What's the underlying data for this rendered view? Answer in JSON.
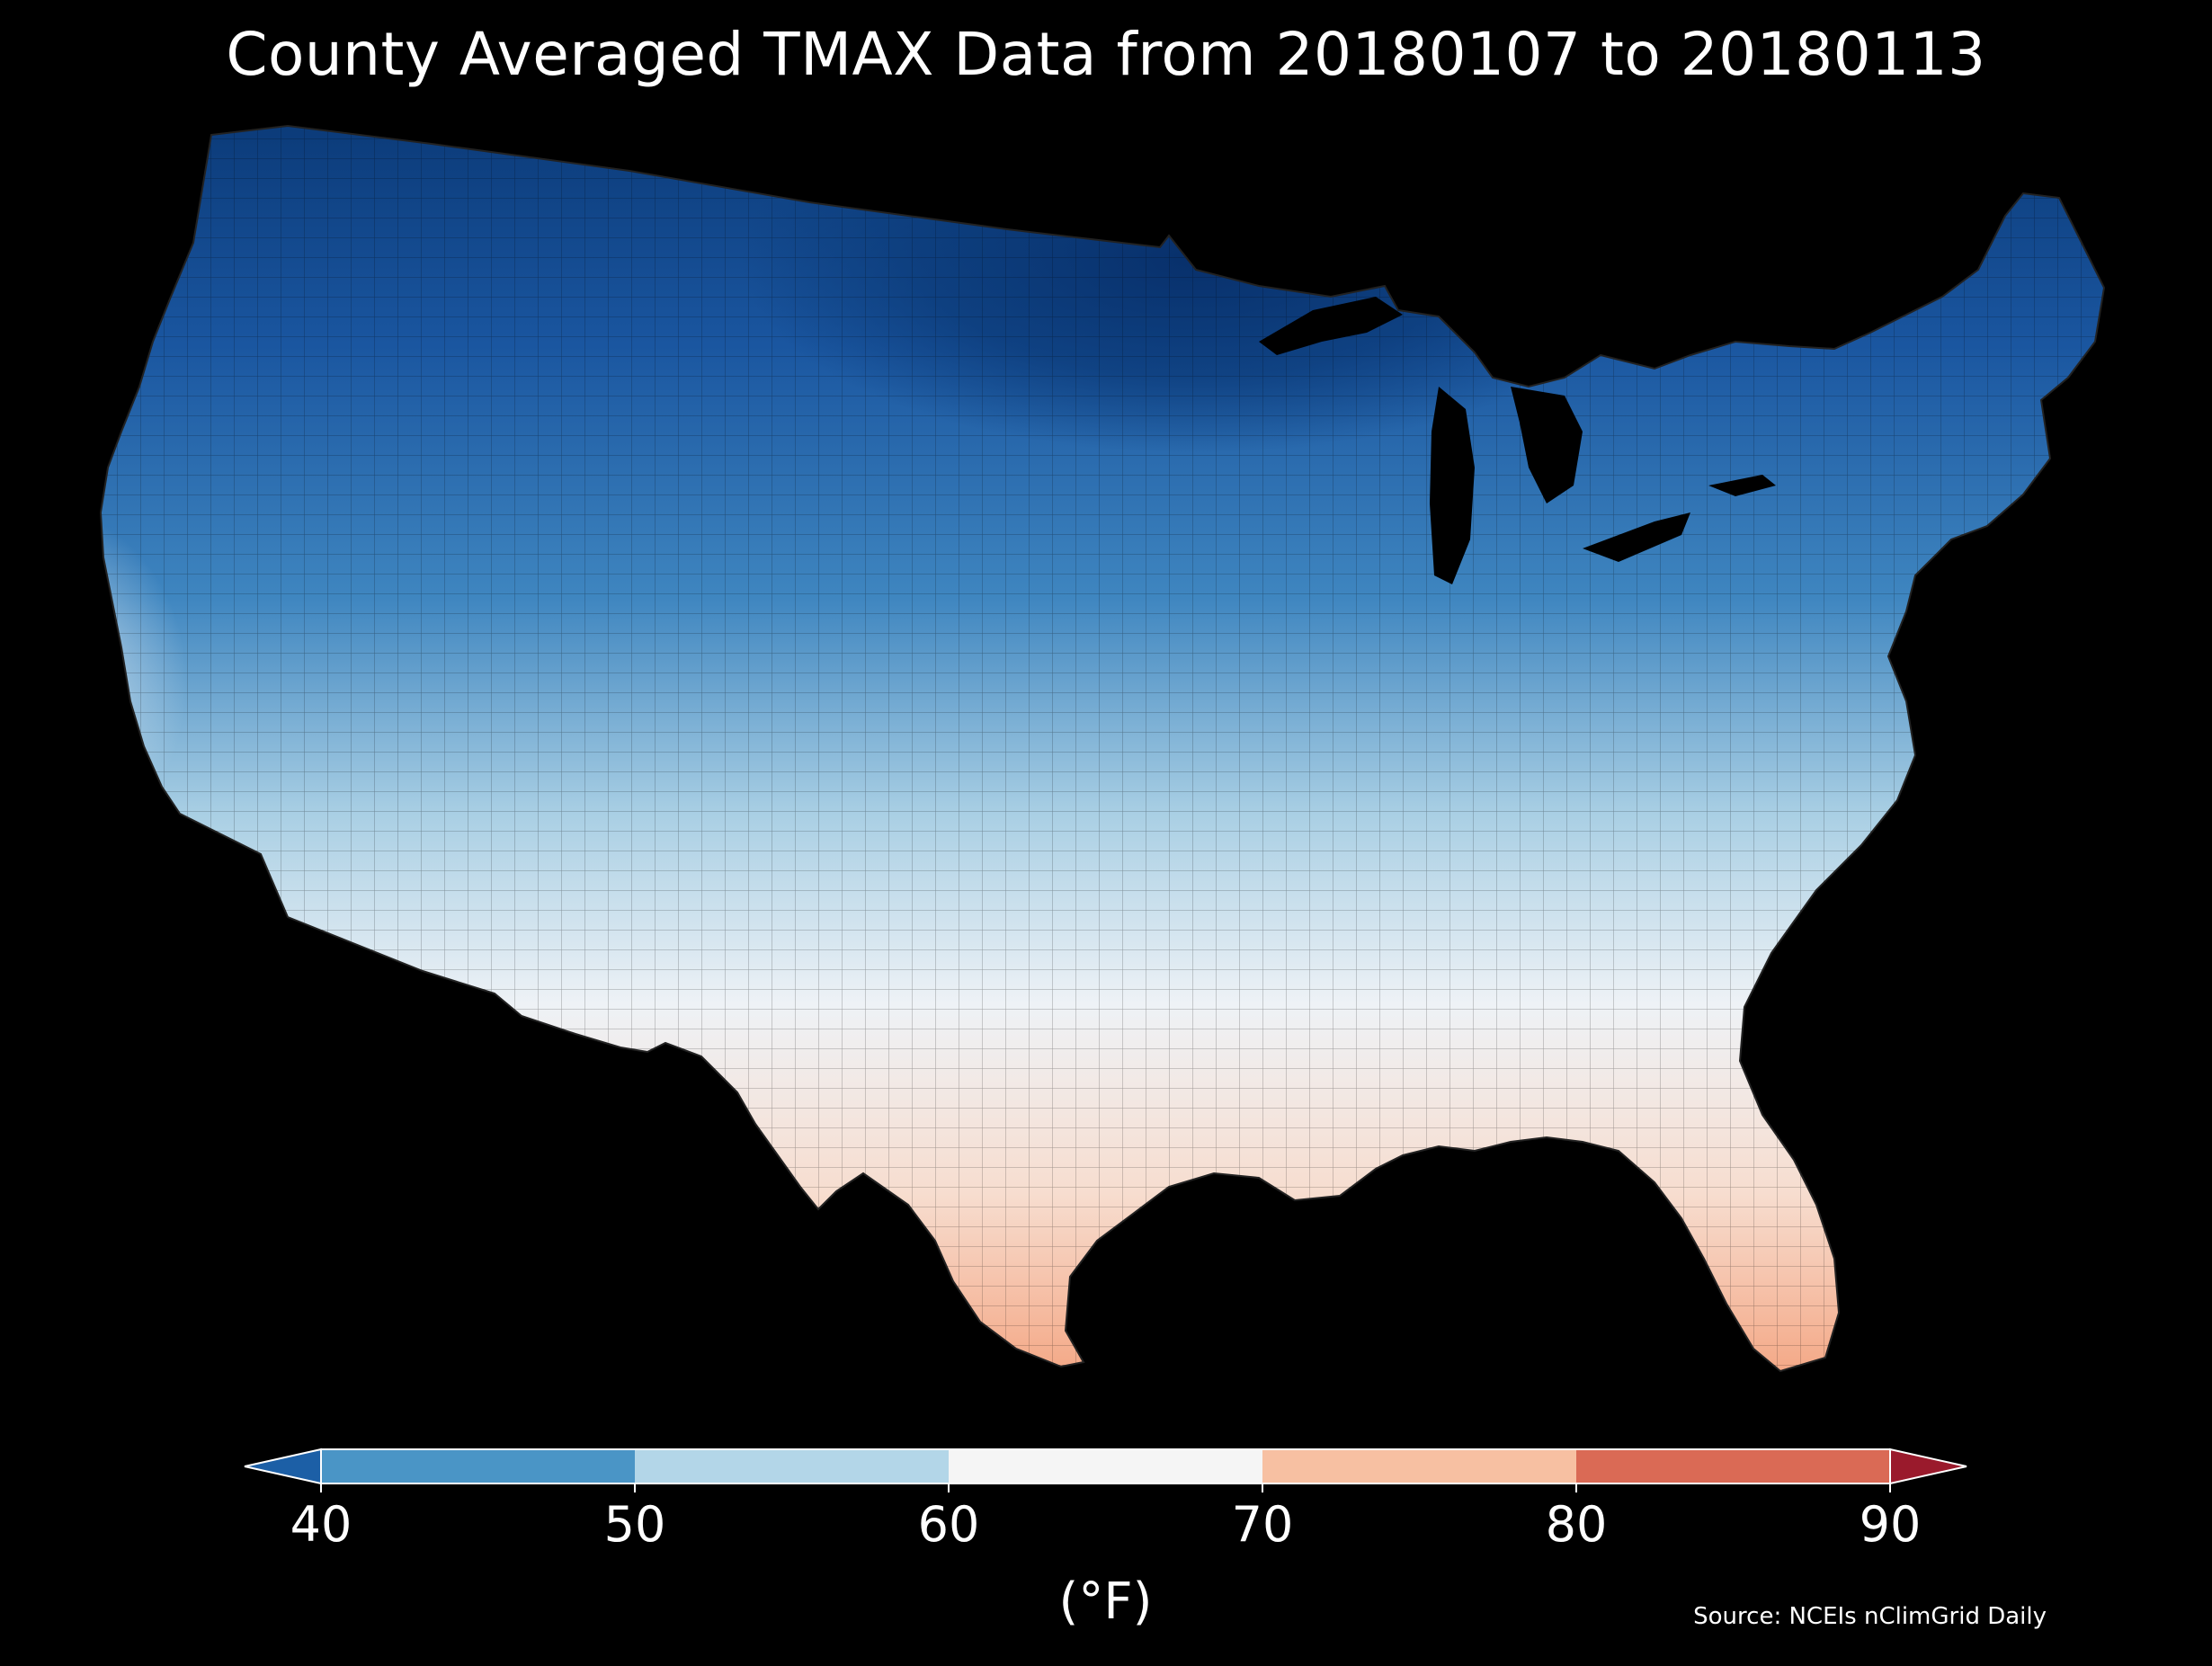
{
  "title": "County Averaged TMAX Data from 20180107 to 20180113",
  "source": "Source: NCEIs nClimGrid Daily",
  "colorbar": {
    "label": "(°F)",
    "ticks": [
      "40",
      "50",
      "60",
      "70",
      "80",
      "90"
    ],
    "bins": [
      {
        "range": "<40",
        "color": "#1c5fa6"
      },
      {
        "range": "40-50",
        "color": "#4a95c6"
      },
      {
        "range": "50-60",
        "color": "#b3d6e8"
      },
      {
        "range": "60-70",
        "color": "#f5f5f5"
      },
      {
        "range": "70-80",
        "color": "#f7c0a2"
      },
      {
        "range": "80-90",
        "color": "#da6a55"
      },
      {
        "range": ">90",
        "color": "#9a1a2c"
      }
    ],
    "extend": "both"
  },
  "map_colors": {
    "coldest": "#08306b",
    "cold": "#2166ac",
    "cool": "#4393c3",
    "mild": "#92c5de",
    "neutral": "#eef2f6",
    "warm": "#f8d3bf",
    "hot": "#f4a582"
  }
}
